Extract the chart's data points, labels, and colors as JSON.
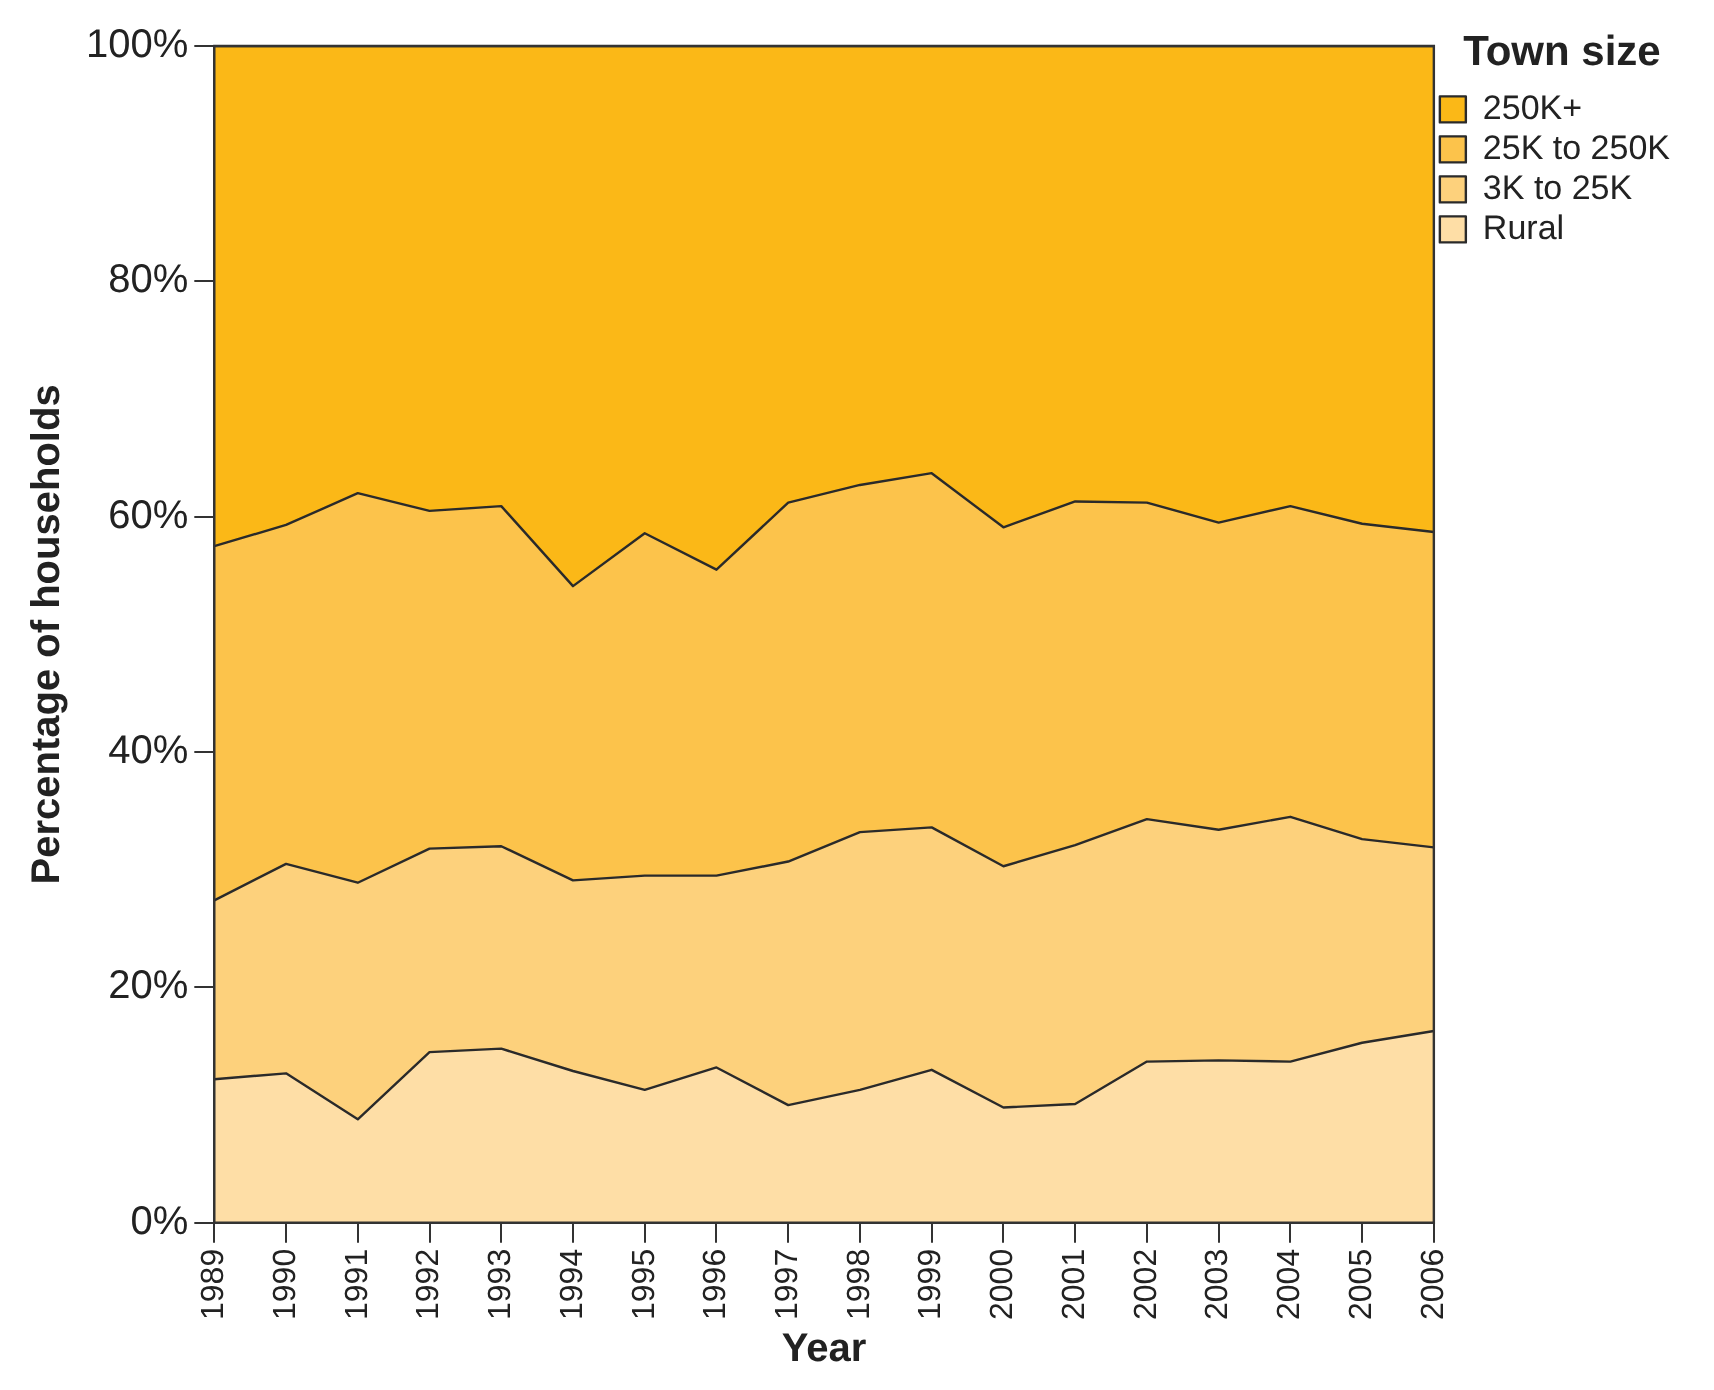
{
  "chart_data": {
    "type": "area",
    "stacked": true,
    "xlabel": "Year",
    "ylabel": "Percentage of households",
    "legend_title": "Town size",
    "legend": "top right",
    "categories": [
      "1989",
      "1990",
      "1991",
      "1992",
      "1993",
      "1994",
      "1995",
      "1996",
      "1997",
      "1998",
      "1999",
      "2000",
      "2001",
      "2002",
      "2003",
      "2004",
      "2005",
      "2006"
    ],
    "ylim": [
      0,
      100
    ],
    "yticks": [
      {
        "value": 0,
        "label": "0%"
      },
      {
        "value": 20,
        "label": "20%"
      },
      {
        "value": 40,
        "label": "40%"
      },
      {
        "value": 60,
        "label": "60%"
      },
      {
        "value": 80,
        "label": "80%"
      },
      {
        "value": 100,
        "label": "100%"
      }
    ],
    "series": [
      {
        "name": "Rural",
        "color": "#fedea6",
        "values": [
          12.2,
          12.7,
          8.8,
          14.5,
          14.8,
          12.9,
          11.3,
          13.2,
          10.0,
          11.3,
          13.0,
          9.8,
          10.1,
          13.7,
          13.8,
          13.7,
          15.3,
          16.3
        ]
      },
      {
        "name": "3K to 25K",
        "color": "#fdd17c",
        "values": [
          15.2,
          17.8,
          20.1,
          17.3,
          17.2,
          16.2,
          18.2,
          16.3,
          20.7,
          21.9,
          20.6,
          20.5,
          22.0,
          20.6,
          19.6,
          20.8,
          17.3,
          15.6
        ]
      },
      {
        "name": "25K to 250K",
        "color": "#fcc34b",
        "values": [
          30.1,
          28.8,
          33.1,
          28.7,
          28.9,
          25.0,
          29.1,
          26.0,
          30.5,
          29.5,
          30.1,
          28.8,
          29.2,
          26.9,
          26.1,
          26.4,
          26.8,
          26.8
        ]
      },
      {
        "name": "250K+",
        "color": "#fbb817",
        "values": [
          42.5,
          40.7,
          38.0,
          39.5,
          39.1,
          45.9,
          41.4,
          44.5,
          38.8,
          37.3,
          36.3,
          40.9,
          38.7,
          38.8,
          40.5,
          39.1,
          40.6,
          41.3
        ]
      }
    ]
  }
}
